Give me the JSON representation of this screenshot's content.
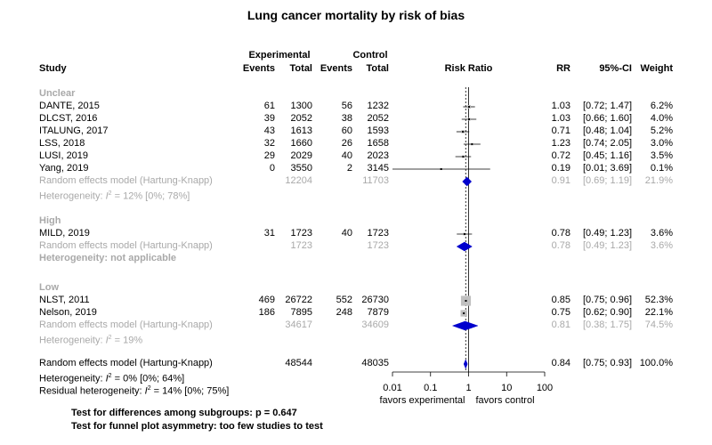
{
  "chart_data": {
    "type": "forest",
    "title": "Lung cancer mortality by risk of bias",
    "scale": "log",
    "xlim": [
      0.01,
      100
    ],
    "reference_line": 1,
    "ticks": [
      "0.01",
      "0.1",
      "1",
      "10",
      "100"
    ],
    "tick_values": [
      0.01,
      0.1,
      1,
      10,
      100
    ],
    "favors_left": "favors experimental",
    "favors_right": "favors control",
    "column_headers": {
      "experimental": "Experimental",
      "control": "Control",
      "study": "Study",
      "events_exp": "Events",
      "total_exp": "Total",
      "events_ctrl": "Events",
      "total_ctrl": "Total",
      "risk_ratio": "Risk Ratio",
      "rr": "RR",
      "ci": "95%-CI",
      "weight": "Weight"
    },
    "groups": [
      {
        "name": "Unclear",
        "studies": [
          {
            "study": "DANTE, 2015",
            "ev_e": "61",
            "n_e": "1300",
            "ev_c": "56",
            "n_c": "1232",
            "rr_text": "1.03",
            "ci_text": "[0.72; 1.47]",
            "w_text": "6.2%",
            "rr": 1.03,
            "lo": 0.72,
            "hi": 1.47,
            "weight": 6.2
          },
          {
            "study": "DLCST, 2016",
            "ev_e": "39",
            "n_e": "2052",
            "ev_c": "38",
            "n_c": "2052",
            "rr_text": "1.03",
            "ci_text": "[0.66; 1.60]",
            "w_text": "4.0%",
            "rr": 1.03,
            "lo": 0.66,
            "hi": 1.6,
            "weight": 4.0
          },
          {
            "study": "ITALUNG, 2017",
            "ev_e": "43",
            "n_e": "1613",
            "ev_c": "60",
            "n_c": "1593",
            "rr_text": "0.71",
            "ci_text": "[0.48; 1.04]",
            "w_text": "5.2%",
            "rr": 0.71,
            "lo": 0.48,
            "hi": 1.04,
            "weight": 5.2
          },
          {
            "study": "LSS, 2018",
            "ev_e": "32",
            "n_e": "1660",
            "ev_c": "26",
            "n_c": "1658",
            "rr_text": "1.23",
            "ci_text": "[0.74; 2.05]",
            "w_text": "3.0%",
            "rr": 1.23,
            "lo": 0.74,
            "hi": 2.05,
            "weight": 3.0
          },
          {
            "study": "LUSI, 2019",
            "ev_e": "29",
            "n_e": "2029",
            "ev_c": "40",
            "n_c": "2023",
            "rr_text": "0.72",
            "ci_text": "[0.45; 1.16]",
            "w_text": "3.5%",
            "rr": 0.72,
            "lo": 0.45,
            "hi": 1.16,
            "weight": 3.5
          },
          {
            "study": "Yang, 2019",
            "ev_e": "0",
            "n_e": "3550",
            "ev_c": "2",
            "n_c": "3145",
            "rr_text": "0.19",
            "ci_text": "[0.01; 3.69]",
            "w_text": "0.1%",
            "rr": 0.19,
            "lo": 0.01,
            "hi": 3.69,
            "weight": 0.1
          }
        ],
        "model": {
          "label": "Random effects model  (Hartung-Knapp)",
          "n_e": "12204",
          "n_c": "11703",
          "rr_text": "0.91",
          "ci_text": "[0.69; 1.19]",
          "w_text": "21.9%",
          "rr": 0.91,
          "lo": 0.69,
          "hi": 1.19
        },
        "heterogeneity": {
          "pre": "Heterogeneity: ",
          "i2": "I",
          "post": " = 12% [0%; 78%]",
          "bold": false
        }
      },
      {
        "name": "High",
        "studies": [
          {
            "study": "MILD, 2019",
            "ev_e": "31",
            "n_e": "1723",
            "ev_c": "40",
            "n_c": "1723",
            "rr_text": "0.78",
            "ci_text": "[0.49; 1.23]",
            "w_text": "3.6%",
            "rr": 0.78,
            "lo": 0.49,
            "hi": 1.23,
            "weight": 3.6
          }
        ],
        "model": {
          "label": "Random effects model  (Hartung-Knapp)",
          "n_e": "1723",
          "n_c": "1723",
          "rr_text": "0.78",
          "ci_text": "[0.49; 1.23]",
          "w_text": "3.6%",
          "rr": 0.78,
          "lo": 0.49,
          "hi": 1.23
        },
        "heterogeneity": {
          "pre": "Heterogeneity: not applicable",
          "i2": "",
          "post": "",
          "bold": true
        }
      },
      {
        "name": "Low",
        "studies": [
          {
            "study": "NLST, 2011",
            "ev_e": "469",
            "n_e": "26722",
            "ev_c": "552",
            "n_c": "26730",
            "rr_text": "0.85",
            "ci_text": "[0.75; 0.96]",
            "w_text": "52.3%",
            "rr": 0.85,
            "lo": 0.75,
            "hi": 0.96,
            "weight": 52.3
          },
          {
            "study": "Nelson, 2019",
            "ev_e": "186",
            "n_e": "7895",
            "ev_c": "248",
            "n_c": "7879",
            "rr_text": "0.75",
            "ci_text": "[0.62; 0.90]",
            "w_text": "22.1%",
            "rr": 0.75,
            "lo": 0.62,
            "hi": 0.9,
            "weight": 22.1
          }
        ],
        "model": {
          "label": "Random effects model  (Hartung-Knapp)",
          "n_e": "34617",
          "n_c": "34609",
          "rr_text": "0.81",
          "ci_text": "[0.38; 1.75]",
          "w_text": "74.5%",
          "rr": 0.81,
          "lo": 0.38,
          "hi": 1.75
        },
        "heterogeneity": {
          "pre": "Heterogeneity: ",
          "i2": "I",
          "post": " = 19%",
          "bold": false
        }
      }
    ],
    "overall": {
      "label": "Random effects model  (Hartung-Knapp)",
      "n_e": "48544",
      "n_c": "48035",
      "rr_text": "0.84",
      "ci_text": "[0.75; 0.93]",
      "w_text": "100.0%",
      "rr": 0.84,
      "lo": 0.75,
      "hi": 0.93,
      "het_pre": "Heterogeneity: ",
      "het_i2": "I",
      "het_post": " = 0% [0%; 64%]",
      "resid_pre": "Residual heterogeneity: ",
      "resid_i2": "I",
      "resid_post": " = 14% [0%; 75%]"
    },
    "footer": [
      "Test for differences among subgroups: p = 0.647",
      "Test for funnel plot asymmetry: too few studies to test"
    ],
    "colors": {
      "diamond": "#0000cd",
      "square": "#c0c0c0",
      "grey_text": "#a9a9a9",
      "line": "#000000"
    }
  }
}
